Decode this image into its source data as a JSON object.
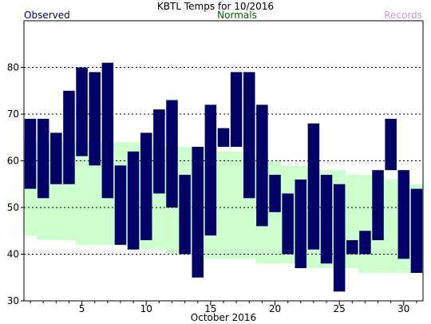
{
  "chart_data": {
    "type": "bar",
    "title": "KBTL Temps for 10/2016",
    "xlabel": "October 2016",
    "ylabel": "",
    "legend": {
      "observed": "Observed",
      "normals": "Normals",
      "records": "Records",
      "placement": "top"
    },
    "ylim": [
      30,
      90
    ],
    "xlim": [
      0.5,
      31.5
    ],
    "yticks": [
      30,
      40,
      50,
      60,
      70,
      80
    ],
    "xticks": [
      5,
      10,
      15,
      20,
      25,
      30
    ],
    "grid": true,
    "colors": {
      "observed": "#000066",
      "normals_band": "#ccffcc",
      "normals_text": "#006600",
      "records_text": "#cc99cc",
      "observed_text": "#000066",
      "grid": "#000000"
    },
    "days": [
      1,
      2,
      3,
      4,
      5,
      6,
      7,
      8,
      9,
      10,
      11,
      12,
      13,
      14,
      15,
      16,
      17,
      18,
      19,
      20,
      21,
      22,
      23,
      24,
      25,
      26,
      27,
      28,
      29,
      30,
      31
    ],
    "observed_high": [
      69,
      69,
      66,
      75,
      80,
      79,
      81,
      59,
      62,
      66,
      71,
      73,
      57,
      63,
      72,
      67,
      79,
      79,
      72,
      57,
      53,
      56,
      68,
      57,
      55,
      43,
      45,
      58,
      69,
      58,
      54
    ],
    "observed_low": [
      54,
      52,
      55,
      55,
      61,
      59,
      52,
      42,
      41,
      43,
      53,
      50,
      40,
      35,
      44,
      63,
      63,
      52,
      46,
      49,
      40,
      37,
      41,
      38,
      32,
      40,
      40,
      43,
      58,
      39,
      36
    ],
    "normal_high": [
      64,
      64,
      64,
      64,
      64,
      64,
      64,
      64,
      64,
      64,
      63,
      63,
      63,
      63,
      63,
      62,
      62,
      61,
      61,
      60,
      59,
      59,
      58,
      58,
      58,
      57,
      57,
      57,
      56,
      56,
      55
    ],
    "normal_low": [
      44,
      43,
      43,
      43,
      42,
      42,
      42,
      42,
      41,
      41,
      41,
      40,
      40,
      40,
      39,
      39,
      39,
      39,
      38,
      38,
      38,
      38,
      37,
      37,
      37,
      37,
      36,
      36,
      36,
      36,
      36
    ]
  }
}
